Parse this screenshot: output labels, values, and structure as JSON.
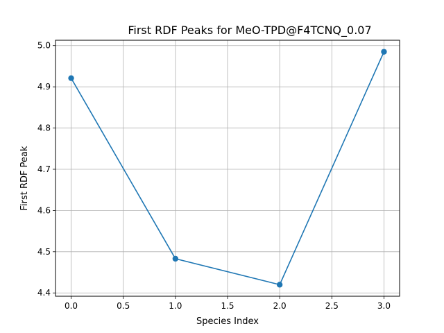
{
  "chart_data": {
    "type": "line",
    "title": "First RDF Peaks for MeO-TPD@F4TCNQ_0.07",
    "xlabel": "Species Index",
    "ylabel": "First RDF Peak",
    "x": [
      0,
      1,
      2,
      3
    ],
    "series": [
      {
        "values": [
          4.921,
          4.483,
          4.42,
          4.985
        ],
        "color": "#1f77b4",
        "marker": "circle"
      }
    ],
    "xlim": [
      -0.15,
      3.15
    ],
    "ylim": [
      4.392,
      5.013
    ],
    "xticks": [
      0.0,
      0.5,
      1.0,
      1.5,
      2.0,
      2.5,
      3.0
    ],
    "xtick_labels": [
      "0.0",
      "0.5",
      "1.0",
      "1.5",
      "2.0",
      "2.5",
      "3.0"
    ],
    "yticks": [
      4.4,
      4.5,
      4.6,
      4.7,
      4.8,
      4.9,
      5.0
    ],
    "ytick_labels": [
      "4.4",
      "4.5",
      "4.6",
      "4.7",
      "4.8",
      "4.9",
      "5.0"
    ],
    "grid": true,
    "legend": "none"
  }
}
